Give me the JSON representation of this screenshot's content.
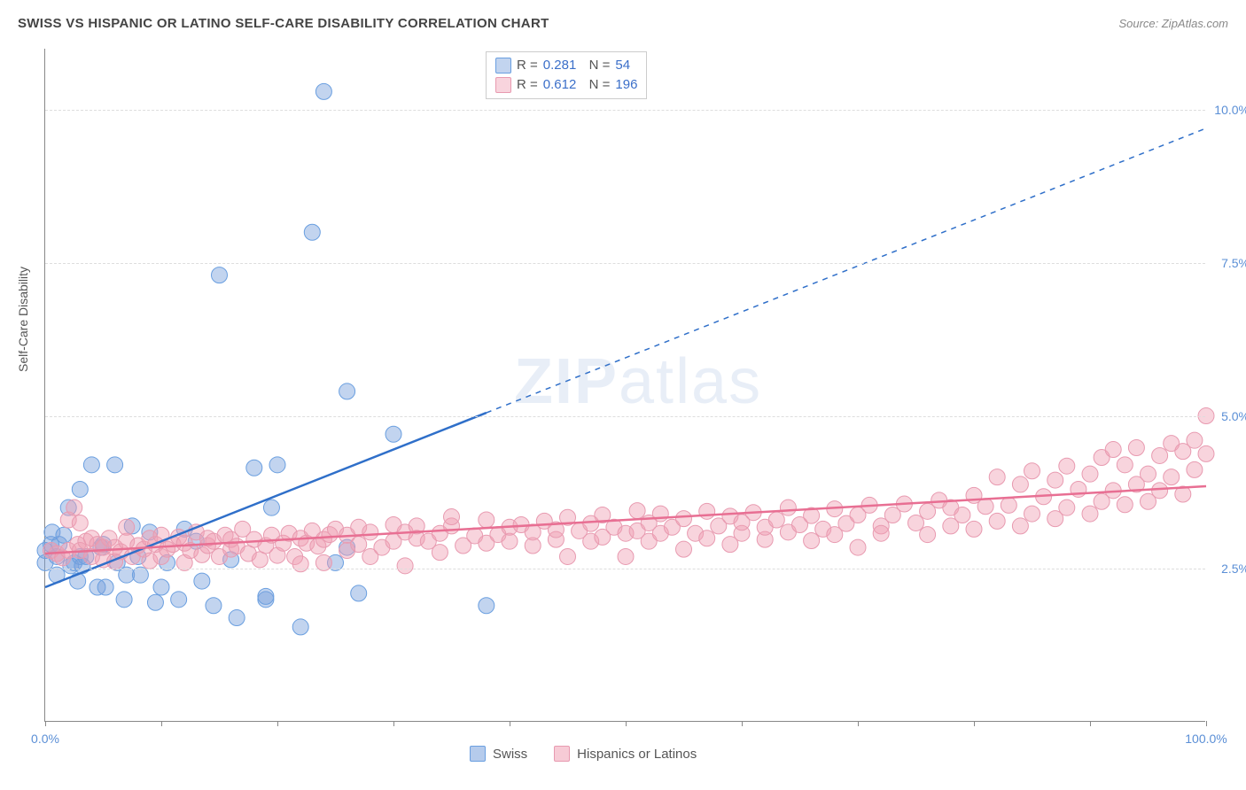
{
  "title": "SWISS VS HISPANIC OR LATINO SELF-CARE DISABILITY CORRELATION CHART",
  "source_label": "Source: ZipAtlas.com",
  "y_axis_label": "Self-Care Disability",
  "watermark": {
    "zip": "ZIP",
    "atlas": "atlas"
  },
  "chart": {
    "type": "scatter",
    "xlim": [
      0,
      100
    ],
    "ylim": [
      0,
      11
    ],
    "x_ticks": [
      0,
      10,
      20,
      30,
      40,
      50,
      60,
      70,
      80,
      90,
      100
    ],
    "x_tick_labels": {
      "0": "0.0%",
      "100": "100.0%"
    },
    "y_grid": [
      2.5,
      5.0,
      7.5,
      10.0
    ],
    "y_tick_labels": {
      "2.5": "2.5%",
      "5.0": "5.0%",
      "7.5": "7.5%",
      "10.0": "10.0%"
    },
    "background_color": "#ffffff",
    "grid_color": "#dddddd",
    "axis_color": "#888888",
    "tick_label_color": "#5b8fd6",
    "series": [
      {
        "name": "Swiss",
        "color_fill": "rgba(120,160,220,0.45)",
        "color_stroke": "#6a9fe0",
        "trend_color": "#2f6fc9",
        "R": "0.281",
        "N": "54",
        "marker_radius": 9,
        "trend": {
          "x1": 0,
          "y1": 2.2,
          "x2": 38,
          "y2": 5.05,
          "dash_x2": 100,
          "dash_y2": 9.7
        },
        "points": [
          [
            0,
            2.8
          ],
          [
            0,
            2.6
          ],
          [
            0.5,
            2.9
          ],
          [
            0.6,
            3.1
          ],
          [
            1,
            2.4
          ],
          [
            1,
            2.7
          ],
          [
            1.2,
            2.9
          ],
          [
            1.6,
            3.05
          ],
          [
            2,
            3.5
          ],
          [
            2.2,
            2.55
          ],
          [
            2.5,
            2.6
          ],
          [
            2.8,
            2.3
          ],
          [
            3,
            3.8
          ],
          [
            3,
            2.7
          ],
          [
            3.2,
            2.55
          ],
          [
            3.5,
            2.7
          ],
          [
            4,
            4.2
          ],
          [
            4.5,
            2.2
          ],
          [
            4.8,
            2.85
          ],
          [
            5,
            2.9
          ],
          [
            5.2,
            2.2
          ],
          [
            6,
            4.2
          ],
          [
            6.2,
            2.6
          ],
          [
            6.8,
            2.0
          ],
          [
            7,
            2.4
          ],
          [
            7.5,
            3.2
          ],
          [
            8,
            2.7
          ],
          [
            8.2,
            2.4
          ],
          [
            9,
            3.1
          ],
          [
            9.5,
            1.95
          ],
          [
            10,
            2.2
          ],
          [
            10.5,
            2.6
          ],
          [
            11.5,
            2.0
          ],
          [
            12,
            3.15
          ],
          [
            13,
            2.95
          ],
          [
            13.5,
            2.3
          ],
          [
            14.5,
            1.9
          ],
          [
            15,
            7.3
          ],
          [
            16,
            2.65
          ],
          [
            16.5,
            1.7
          ],
          [
            18,
            4.15
          ],
          [
            19,
            2.0
          ],
          [
            19,
            2.05
          ],
          [
            19.5,
            3.5
          ],
          [
            20,
            4.2
          ],
          [
            22,
            1.55
          ],
          [
            23,
            8.0
          ],
          [
            24,
            10.3
          ],
          [
            25,
            2.6
          ],
          [
            26,
            2.85
          ],
          [
            26,
            5.4
          ],
          [
            27,
            2.1
          ],
          [
            30,
            4.7
          ],
          [
            38,
            1.9
          ]
        ]
      },
      {
        "name": "Hispanics or Latinos",
        "color_fill": "rgba(240,160,180,0.45)",
        "color_stroke": "#e89ab0",
        "trend_color": "#e86f93",
        "R": "0.612",
        "N": "196",
        "marker_radius": 9,
        "trend": {
          "x1": 0,
          "y1": 2.75,
          "x2": 100,
          "y2": 3.85
        },
        "points": [
          [
            0.5,
            2.8
          ],
          [
            1,
            2.75
          ],
          [
            1.5,
            2.68
          ],
          [
            2,
            2.8
          ],
          [
            2,
            3.3
          ],
          [
            2.5,
            3.5
          ],
          [
            2.8,
            2.9
          ],
          [
            3,
            2.8
          ],
          [
            3,
            3.25
          ],
          [
            3.5,
            2.95
          ],
          [
            4,
            3.0
          ],
          [
            4,
            2.7
          ],
          [
            4.5,
            2.9
          ],
          [
            5,
            2.85
          ],
          [
            5,
            2.65
          ],
          [
            5.5,
            3.0
          ],
          [
            6,
            2.62
          ],
          [
            6,
            2.85
          ],
          [
            6.5,
            2.78
          ],
          [
            7,
            2.95
          ],
          [
            7,
            3.18
          ],
          [
            7.5,
            2.7
          ],
          [
            8,
            2.88
          ],
          [
            8.5,
            2.82
          ],
          [
            9,
            2.63
          ],
          [
            9,
            3.0
          ],
          [
            9.5,
            2.9
          ],
          [
            10,
            2.7
          ],
          [
            10,
            3.05
          ],
          [
            10.5,
            2.82
          ],
          [
            11,
            2.9
          ],
          [
            11.5,
            3.02
          ],
          [
            12,
            2.6
          ],
          [
            12,
            2.92
          ],
          [
            12.5,
            2.8
          ],
          [
            13,
            3.1
          ],
          [
            13.5,
            2.73
          ],
          [
            14,
            2.88
          ],
          [
            14,
            3.0
          ],
          [
            14.5,
            2.95
          ],
          [
            15,
            2.7
          ],
          [
            15.5,
            3.05
          ],
          [
            16,
            2.82
          ],
          [
            16,
            2.98
          ],
          [
            16.5,
            2.87
          ],
          [
            17,
            3.15
          ],
          [
            17.5,
            2.75
          ],
          [
            18,
            2.98
          ],
          [
            18.5,
            2.65
          ],
          [
            19,
            2.88
          ],
          [
            19.5,
            3.05
          ],
          [
            20,
            2.72
          ],
          [
            20.5,
            2.92
          ],
          [
            21,
            3.08
          ],
          [
            21.5,
            2.7
          ],
          [
            22,
            2.58
          ],
          [
            22,
            3.0
          ],
          [
            22.5,
            2.92
          ],
          [
            23,
            3.12
          ],
          [
            23.5,
            2.87
          ],
          [
            24,
            2.6
          ],
          [
            24,
            2.98
          ],
          [
            24.5,
            3.06
          ],
          [
            25,
            3.15
          ],
          [
            26,
            2.8
          ],
          [
            26,
            3.05
          ],
          [
            27,
            2.9
          ],
          [
            27,
            3.18
          ],
          [
            28,
            2.7
          ],
          [
            28,
            3.1
          ],
          [
            29,
            2.85
          ],
          [
            30,
            3.22
          ],
          [
            30,
            2.95
          ],
          [
            31,
            2.55
          ],
          [
            31,
            3.1
          ],
          [
            32,
            3.0
          ],
          [
            32,
            3.2
          ],
          [
            33,
            2.95
          ],
          [
            34,
            2.77
          ],
          [
            34,
            3.08
          ],
          [
            35,
            3.2
          ],
          [
            35,
            3.35
          ],
          [
            36,
            2.88
          ],
          [
            37,
            3.04
          ],
          [
            38,
            3.3
          ],
          [
            38,
            2.92
          ],
          [
            39,
            3.06
          ],
          [
            40,
            2.95
          ],
          [
            40,
            3.18
          ],
          [
            41,
            3.22
          ],
          [
            42,
            2.88
          ],
          [
            42,
            3.1
          ],
          [
            43,
            3.28
          ],
          [
            44,
            2.98
          ],
          [
            44,
            3.14
          ],
          [
            45,
            2.7
          ],
          [
            45,
            3.34
          ],
          [
            46,
            3.12
          ],
          [
            47,
            2.95
          ],
          [
            47,
            3.24
          ],
          [
            48,
            3.02
          ],
          [
            48,
            3.38
          ],
          [
            49,
            3.18
          ],
          [
            50,
            2.7
          ],
          [
            50,
            3.08
          ],
          [
            51,
            3.45
          ],
          [
            51,
            3.12
          ],
          [
            52,
            2.95
          ],
          [
            52,
            3.25
          ],
          [
            53,
            3.4
          ],
          [
            53,
            3.08
          ],
          [
            54,
            3.18
          ],
          [
            55,
            2.82
          ],
          [
            55,
            3.32
          ],
          [
            56,
            3.08
          ],
          [
            57,
            3.44
          ],
          [
            57,
            3.0
          ],
          [
            58,
            3.2
          ],
          [
            59,
            2.9
          ],
          [
            59,
            3.36
          ],
          [
            60,
            3.08
          ],
          [
            60,
            3.26
          ],
          [
            61,
            3.42
          ],
          [
            62,
            2.98
          ],
          [
            62,
            3.18
          ],
          [
            63,
            3.3
          ],
          [
            64,
            3.1
          ],
          [
            64,
            3.5
          ],
          [
            65,
            3.22
          ],
          [
            66,
            2.96
          ],
          [
            66,
            3.37
          ],
          [
            67,
            3.15
          ],
          [
            68,
            3.48
          ],
          [
            68,
            3.06
          ],
          [
            69,
            3.24
          ],
          [
            70,
            2.85
          ],
          [
            70,
            3.38
          ],
          [
            71,
            3.54
          ],
          [
            72,
            3.2
          ],
          [
            72,
            3.08
          ],
          [
            73,
            3.38
          ],
          [
            74,
            3.56
          ],
          [
            75,
            3.25
          ],
          [
            76,
            3.06
          ],
          [
            76,
            3.44
          ],
          [
            77,
            3.62
          ],
          [
            78,
            3.2
          ],
          [
            78,
            3.5
          ],
          [
            79,
            3.38
          ],
          [
            80,
            3.7
          ],
          [
            80,
            3.15
          ],
          [
            81,
            3.52
          ],
          [
            82,
            3.28
          ],
          [
            82,
            4.0
          ],
          [
            83,
            3.54
          ],
          [
            84,
            3.2
          ],
          [
            84,
            3.88
          ],
          [
            85,
            3.4
          ],
          [
            85,
            4.1
          ],
          [
            86,
            3.68
          ],
          [
            87,
            3.32
          ],
          [
            87,
            3.95
          ],
          [
            88,
            3.5
          ],
          [
            88,
            4.18
          ],
          [
            89,
            3.8
          ],
          [
            90,
            3.4
          ],
          [
            90,
            4.05
          ],
          [
            91,
            3.6
          ],
          [
            91,
            4.32
          ],
          [
            92,
            3.78
          ],
          [
            92,
            4.45
          ],
          [
            93,
            3.55
          ],
          [
            93,
            4.2
          ],
          [
            94,
            3.88
          ],
          [
            94,
            4.48
          ],
          [
            95,
            4.05
          ],
          [
            95,
            3.6
          ],
          [
            96,
            4.35
          ],
          [
            96,
            3.78
          ],
          [
            97,
            4.55
          ],
          [
            97,
            4.0
          ],
          [
            98,
            4.42
          ],
          [
            98,
            3.72
          ],
          [
            99,
            4.6
          ],
          [
            99,
            4.12
          ],
          [
            100,
            5.0
          ],
          [
            100,
            4.38
          ]
        ]
      }
    ],
    "legend_bottom": [
      {
        "swatch_fill": "rgba(120,160,220,0.55)",
        "swatch_stroke": "#6a9fe0",
        "label": "Swiss"
      },
      {
        "swatch_fill": "rgba(240,160,180,0.55)",
        "swatch_stroke": "#e89ab0",
        "label": "Hispanics or Latinos"
      }
    ]
  }
}
